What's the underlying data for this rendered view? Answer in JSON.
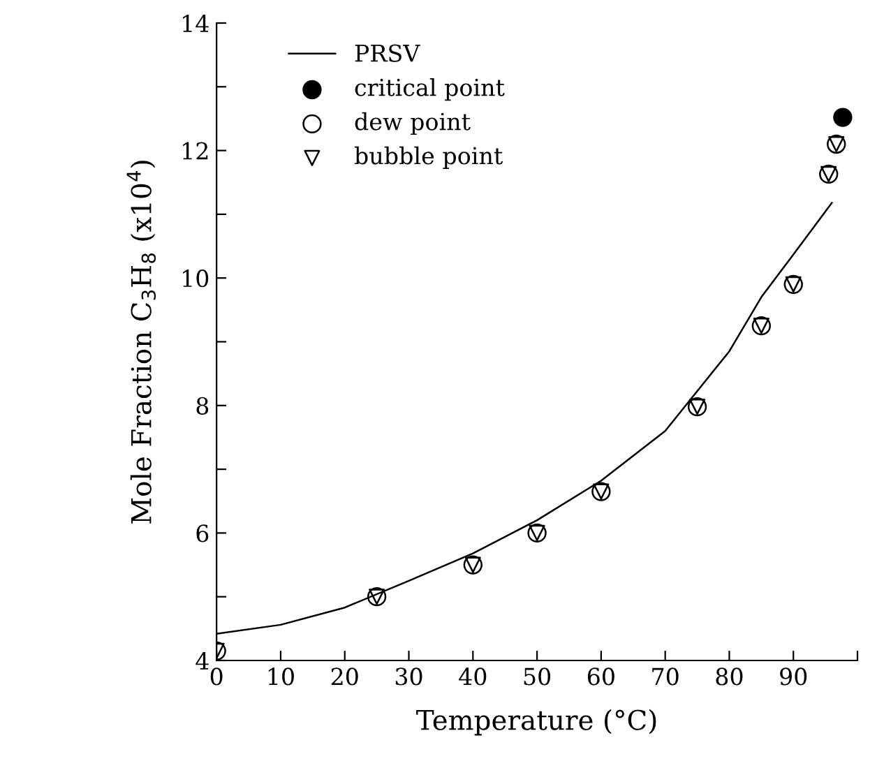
{
  "chart_data": {
    "type": "scatter",
    "xlabel": "Temperature (°C)",
    "ylabel": "Mole Fraction C$_{3}$H$_{8}$ (x10$^{4}$)",
    "xlim": [
      0,
      100
    ],
    "ylim": [
      4,
      14
    ],
    "xticks": [
      0,
      10,
      20,
      30,
      40,
      50,
      60,
      70,
      80,
      90,
      {
        "value": 100,
        "label": null
      }
    ],
    "yticks": [
      4,
      {
        "value": 5,
        "label": null
      },
      6,
      {
        "value": 7,
        "label": null
      },
      8,
      {
        "value": 9,
        "label": null
      },
      10,
      {
        "value": 11,
        "label": null
      },
      12,
      {
        "value": 13,
        "label": null
      },
      14
    ],
    "legend": "top left",
    "grid": false,
    "series": [
      {
        "name": "PRSV",
        "type": "line",
        "color": "#000000",
        "marker": "none",
        "line_style": "solid",
        "x": [
          0,
          10,
          20,
          30,
          40,
          50,
          60,
          70,
          80,
          85,
          90,
          96
        ],
        "values": [
          4.42,
          4.56,
          4.83,
          5.25,
          5.68,
          6.2,
          6.82,
          7.6,
          8.85,
          9.7,
          10.37,
          11.18
        ]
      },
      {
        "name": "critical point",
        "color": "#000000",
        "marker": "circle",
        "x": [
          97.7
        ],
        "values": [
          12.52
        ]
      },
      {
        "name": "dew point",
        "color": "#000000",
        "marker": "circle",
        "x": [
          0,
          25,
          40,
          50,
          60,
          75,
          85,
          90,
          95.5,
          96.7
        ],
        "values": [
          4.15,
          5.0,
          5.5,
          6.0,
          6.65,
          7.98,
          9.25,
          9.9,
          11.63,
          12.1
        ]
      },
      {
        "name": "bubble point",
        "color": "#000000",
        "marker": "triangle_down",
        "x": [
          0,
          25,
          40,
          50,
          60,
          75,
          85,
          90,
          95.5,
          96.7
        ],
        "values": [
          4.15,
          5.0,
          5.5,
          6.0,
          6.65,
          7.98,
          9.25,
          9.9,
          11.63,
          12.1
        ]
      }
    ]
  }
}
